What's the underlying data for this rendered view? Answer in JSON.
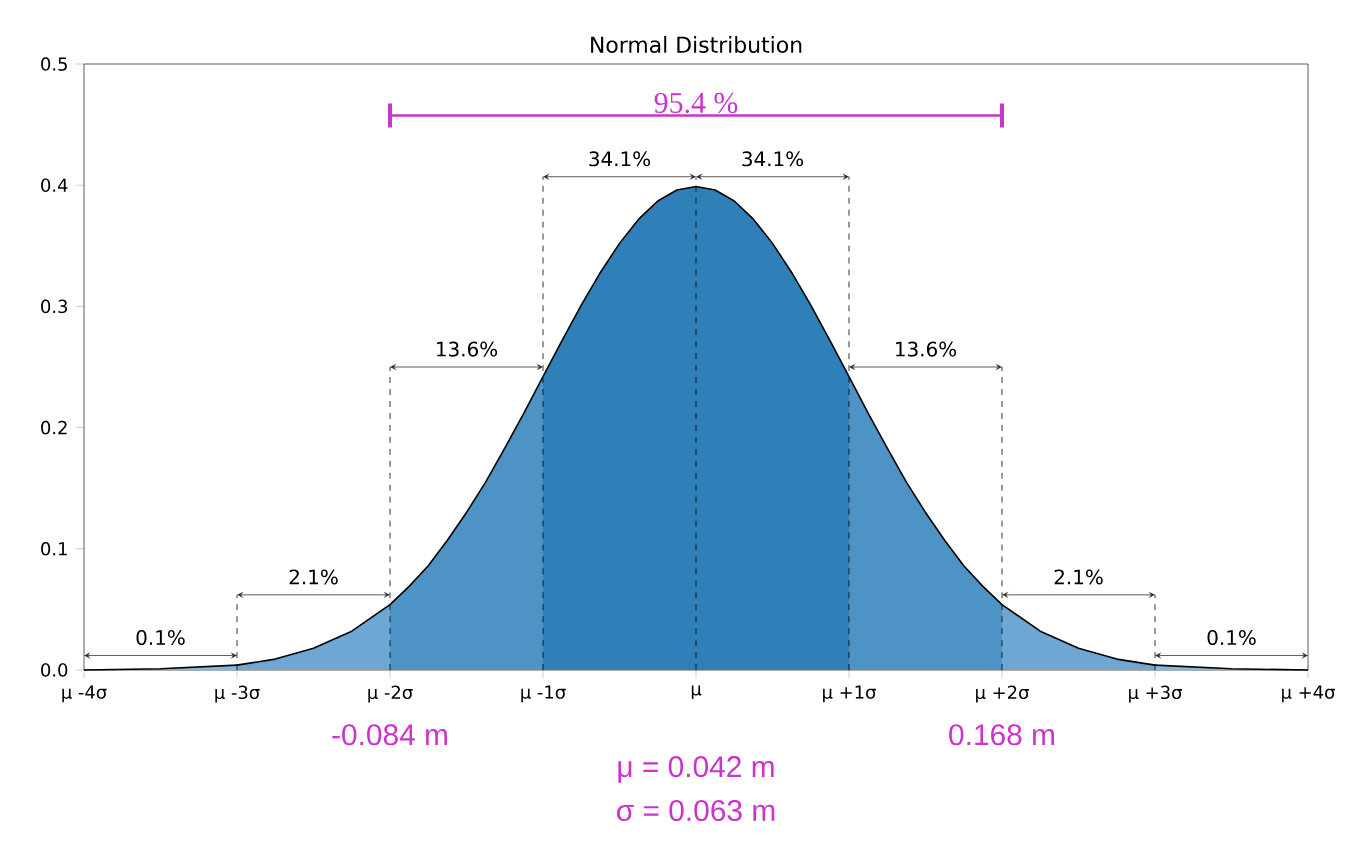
{
  "chart_data": {
    "type": "area",
    "title": "Normal Distribution",
    "xlim": [
      -4,
      4
    ],
    "ylim": [
      0,
      0.5
    ],
    "xticks": [
      {
        "value": -4,
        "label": "μ -4σ"
      },
      {
        "value": -3,
        "label": "μ -3σ"
      },
      {
        "value": -2,
        "label": "μ -2σ"
      },
      {
        "value": -1,
        "label": "μ -1σ"
      },
      {
        "value": 0,
        "label": "μ"
      },
      {
        "value": 1,
        "label": "μ +1σ"
      },
      {
        "value": 2,
        "label": "μ +2σ"
      },
      {
        "value": 3,
        "label": "μ +3σ"
      },
      {
        "value": 4,
        "label": "μ +4σ"
      }
    ],
    "yticks": [
      {
        "value": 0,
        "label": "0.0"
      },
      0.1,
      0.2,
      0.3,
      0.4,
      0.5
    ],
    "series": [
      {
        "color": "#82b6dd",
        "x": [
          -4,
          -3.5,
          -3
        ],
        "values": [
          0.0,
          0.001,
          0.004
        ]
      },
      {
        "color": "#6ea7d4",
        "x": [
          -3,
          -2.75,
          -2.5,
          -2.25,
          -2
        ],
        "values": [
          0.004,
          0.009,
          0.018,
          0.032,
          0.054
        ]
      },
      {
        "color": "#4d93c6",
        "x": [
          -2,
          -1.875,
          -1.75,
          -1.625,
          -1.5,
          -1.375,
          -1.25,
          -1.125,
          -1
        ],
        "values": [
          0.054,
          0.069,
          0.086,
          0.107,
          0.13,
          0.155,
          0.183,
          0.212,
          0.242
        ]
      },
      {
        "color": "#2f7fb9",
        "x": [
          -1,
          -0.875,
          -0.75,
          -0.625,
          -0.5,
          -0.375,
          -0.25,
          -0.125,
          0,
          0.125,
          0.25,
          0.375,
          0.5,
          0.625,
          0.75,
          0.875,
          1
        ],
        "values": [
          0.242,
          0.272,
          0.301,
          0.328,
          0.352,
          0.372,
          0.387,
          0.396,
          0.399,
          0.396,
          0.387,
          0.372,
          0.352,
          0.328,
          0.301,
          0.272,
          0.242
        ]
      },
      {
        "color": "#4d93c6",
        "x": [
          1,
          1.125,
          1.25,
          1.375,
          1.5,
          1.625,
          1.75,
          1.875,
          2
        ],
        "values": [
          0.242,
          0.212,
          0.183,
          0.155,
          0.13,
          0.107,
          0.086,
          0.069,
          0.054
        ]
      },
      {
        "color": "#6ea7d4",
        "x": [
          2,
          2.25,
          2.5,
          2.75,
          3
        ],
        "values": [
          0.054,
          0.032,
          0.018,
          0.009,
          0.004
        ]
      },
      {
        "color": "#82b6dd",
        "x": [
          3,
          3.5,
          4
        ],
        "values": [
          0.004,
          0.001,
          0.0
        ]
      }
    ],
    "ref_lines": [
      {
        "axis": "x",
        "value": -3,
        "color": "#000000",
        "line_style": "dashed"
      },
      {
        "axis": "x",
        "value": -2,
        "color": "#000000",
        "line_style": "dashed"
      },
      {
        "axis": "x",
        "value": -1,
        "color": "#000000",
        "line_style": "dashed"
      },
      {
        "axis": "x",
        "value": 0,
        "color": "#000000",
        "line_style": "dashed"
      },
      {
        "axis": "x",
        "value": 1,
        "color": "#000000",
        "line_style": "dashed"
      },
      {
        "axis": "x",
        "value": 2,
        "color": "#000000",
        "line_style": "dashed"
      },
      {
        "axis": "x",
        "value": 3,
        "color": "#000000",
        "line_style": "dashed"
      }
    ],
    "annotations": [
      "95.4 %",
      "0.1%",
      "2.1%",
      "13.6%",
      "34.1%",
      "34.1%",
      "13.6%",
      "2.1%",
      "0.1%",
      "-0.084 m",
      "0.168 m",
      "μ = 0.042 m",
      "σ = 0.063 m"
    ]
  }
}
